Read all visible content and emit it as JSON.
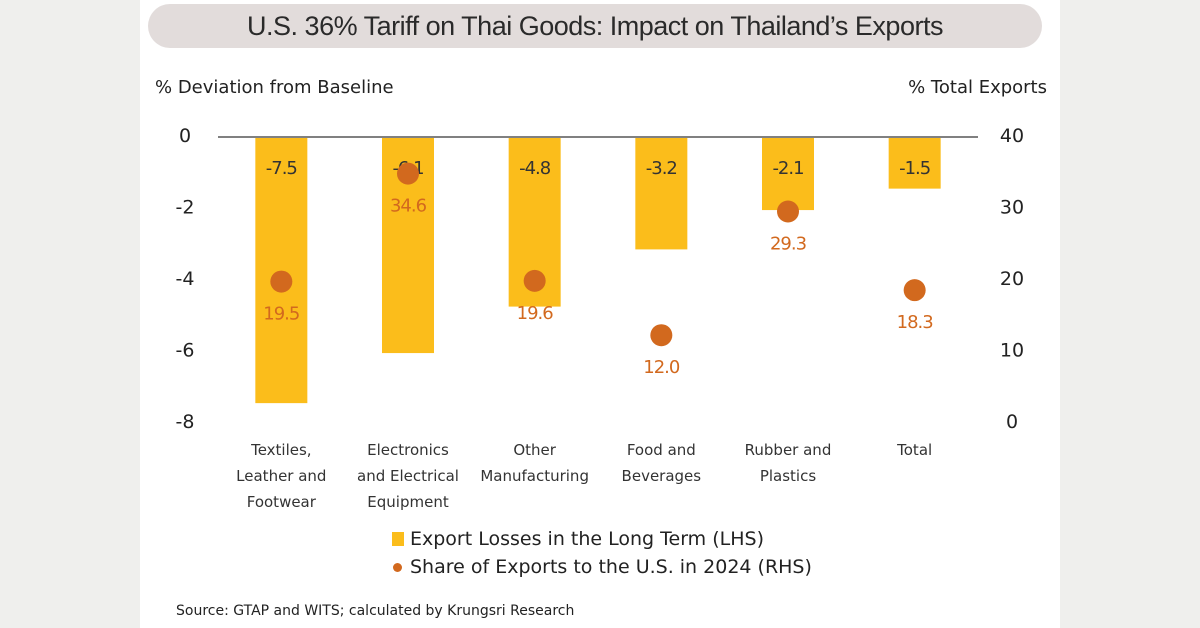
{
  "chart_data": {
    "type": "bar",
    "title": "U.S. 36% Tariff on Thai Goods: Impact on Thailand’s Exports",
    "ylabel": "% Deviation from Baseline",
    "y2label": "% Total Exports",
    "ylim": [
      -8,
      0
    ],
    "y2lim": [
      0,
      40
    ],
    "yticks": [
      "0",
      "-2",
      "-4",
      "-6",
      "-8"
    ],
    "y2ticks": [
      "40",
      "30",
      "20",
      "10",
      "0"
    ],
    "categories": [
      [
        "Textiles,",
        "Leather and",
        "Footwear"
      ],
      [
        "Electronics",
        "and Electrical",
        "Equipment"
      ],
      [
        "Other",
        "Manufacturing"
      ],
      [
        "Food and",
        "Beverages"
      ],
      [
        "Rubber and",
        "Plastics"
      ],
      [
        "Total"
      ]
    ],
    "series": [
      {
        "name": "Export Losses in the Long Term (LHS)",
        "type": "bar",
        "axis": "left",
        "color": "#fbbd1b",
        "values": [
          -7.5,
          -6.1,
          -4.8,
          -3.2,
          -2.1,
          -1.5
        ],
        "labels": [
          "-7.5",
          "-6.1",
          "-4.8",
          "-3.2",
          "-2.1",
          "-1.5"
        ]
      },
      {
        "name": "Share of Exports to the U.S. in 2024 (RHS)",
        "type": "scatter",
        "axis": "right",
        "color": "#d2691e",
        "values": [
          19.5,
          34.6,
          19.6,
          12.0,
          29.3,
          18.3
        ],
        "labels": [
          "19.5",
          "34.6",
          "19.6",
          "12.0",
          "29.3",
          "18.3"
        ]
      }
    ],
    "legend": "bottom-center",
    "source": "Source: GTAP and WITS; calculated  by Krungsri  Research"
  }
}
